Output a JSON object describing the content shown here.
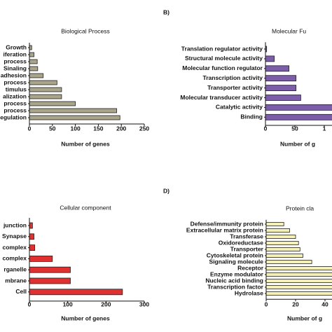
{
  "chart_data": [
    {
      "type": "barh",
      "title": "Biological Process",
      "xlabel": "Number of genes",
      "categories": [
        "Growth",
        "iferation",
        "process",
        "Sinaling",
        "adhesion",
        "process",
        "timulus",
        "alization",
        "process",
        "process",
        "egulation"
      ],
      "values": [
        5,
        10,
        17,
        18,
        30,
        60,
        70,
        70,
        100,
        190,
        197
      ],
      "color": "#a9a58a",
      "xlim": [
        0,
        250
      ],
      "xticks": [
        0,
        50,
        100,
        150,
        200,
        250
      ]
    },
    {
      "type": "barh",
      "panel_label": "B)",
      "title": "Molecular Fu",
      "xlabel": "Number of g",
      "categories": [
        "Translation regulator activity",
        "Structural molecule activity",
        "Molecular function regulator",
        "Transcription activity",
        "Transporter activity",
        "Molecular transducer activity",
        "Catalytic activity",
        "Binding"
      ],
      "values": [
        2,
        15,
        40,
        52,
        52,
        60,
        130,
        135
      ],
      "color": "#7b5ea7",
      "xlim": [
        0,
        150
      ],
      "xticks": [
        0,
        50,
        {
          "value": 100,
          "label": "1"
        }
      ]
    },
    {
      "type": "barh",
      "title": "Cellular component",
      "xlabel": "Number of genes",
      "categories": [
        "junction",
        "Synapse",
        "complex",
        "complex",
        "rganelle",
        "mbrane",
        "Cell"
      ],
      "values": [
        8,
        12,
        14,
        60,
        107,
        107,
        243
      ],
      "color": "#e03030",
      "xlim": [
        0,
        300
      ],
      "xticks": [
        0,
        100,
        200,
        300
      ]
    },
    {
      "type": "barh",
      "panel_label": "D)",
      "title": "Protein cla",
      "xlabel": "Number of g",
      "categories": [
        "Defense/immunity protein",
        "Extracellular matrix protein",
        "Transferase",
        "Oxidoreductase",
        "Transporter",
        "Cytoskeletal protein",
        "Signaling molecule",
        "Receptor",
        "Enzyme modulator",
        "Nucleic acid binding",
        "Transcription factor",
        "Hydrolase"
      ],
      "values": [
        12,
        16,
        20,
        22,
        23,
        25,
        31,
        50,
        52,
        55,
        58,
        60
      ],
      "color": "#f5f0b5",
      "xlim": [
        0,
        60
      ],
      "xticks": [
        0,
        20,
        40
      ]
    }
  ]
}
